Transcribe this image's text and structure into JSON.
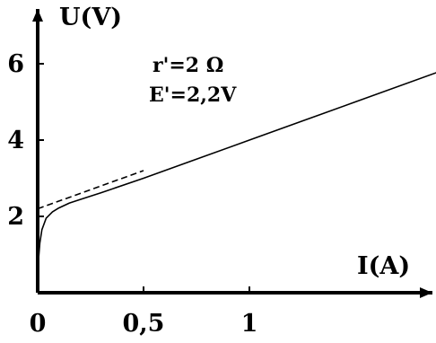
{
  "chart_data": {
    "type": "line",
    "title": "",
    "xlabel": "I(A)",
    "ylabel": "U(V)",
    "xlim": [
      0,
      1.75
    ],
    "ylim": [
      0,
      7.5
    ],
    "x_ticks": [
      {
        "value": 0,
        "label": "0"
      },
      {
        "value": 0.5,
        "label": "0,5"
      },
      {
        "value": 1,
        "label": "1"
      }
    ],
    "y_ticks": [
      {
        "value": 2,
        "label": "2"
      },
      {
        "value": 4,
        "label": "4"
      },
      {
        "value": 6,
        "label": "6"
      }
    ],
    "grid": false,
    "annotations": [
      "r'=2 Ω",
      "E'=2,2V"
    ],
    "series": [
      {
        "style": "solid",
        "x": [
          0,
          0.003,
          0.01,
          0.02,
          0.04,
          0.07,
          0.1,
          0.15,
          0.2,
          0.3,
          0.5,
          0.75,
          1,
          1.25,
          1.5,
          1.9
        ],
        "y": [
          0,
          0.8,
          1.3,
          1.65,
          1.95,
          2.12,
          2.22,
          2.35,
          2.44,
          2.62,
          3.0,
          3.5,
          4.0,
          4.5,
          5.0,
          5.8
        ]
      },
      {
        "style": "dashed",
        "x": [
          0,
          0.5
        ],
        "y": [
          2.2,
          3.2
        ]
      }
    ]
  }
}
